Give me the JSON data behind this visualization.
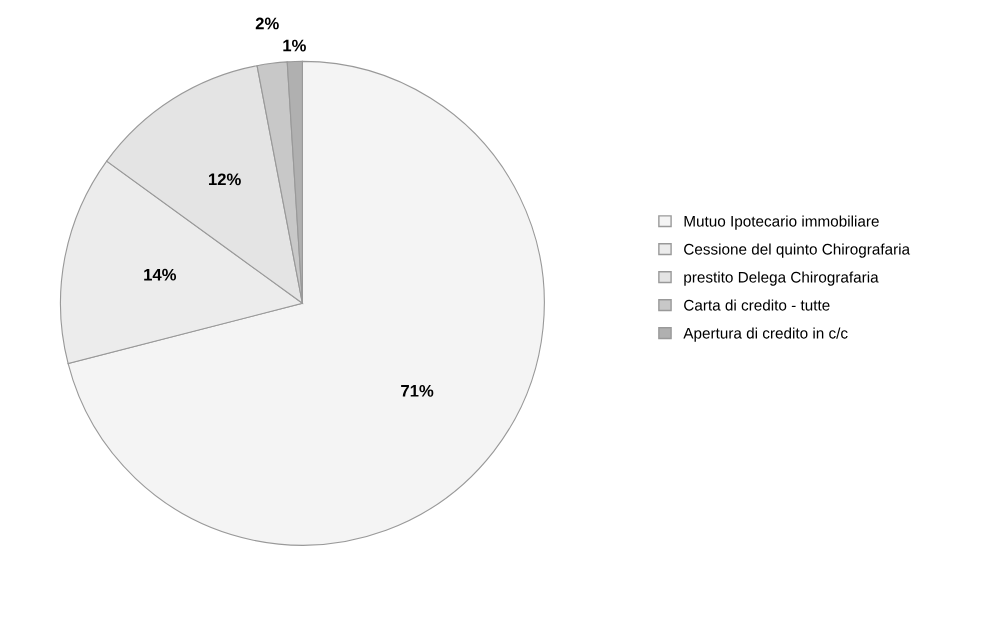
{
  "chart_data": {
    "type": "pie",
    "categories": [
      "Mutuo Ipotecario immobiliare",
      "Cessione del quinto Chirografaria",
      "prestito Delega Chirografaria",
      "Carta di credito - tutte",
      "Apertura di credito in c/c"
    ],
    "values": [
      71,
      14,
      12,
      2,
      1
    ],
    "value_labels": [
      "71%",
      "14%",
      "12%",
      "2%",
      "1%"
    ],
    "colors": [
      "#f4f4f4",
      "#ececec",
      "#e4e4e4",
      "#c8c8c8",
      "#b0b0b0"
    ],
    "legend": "right"
  }
}
